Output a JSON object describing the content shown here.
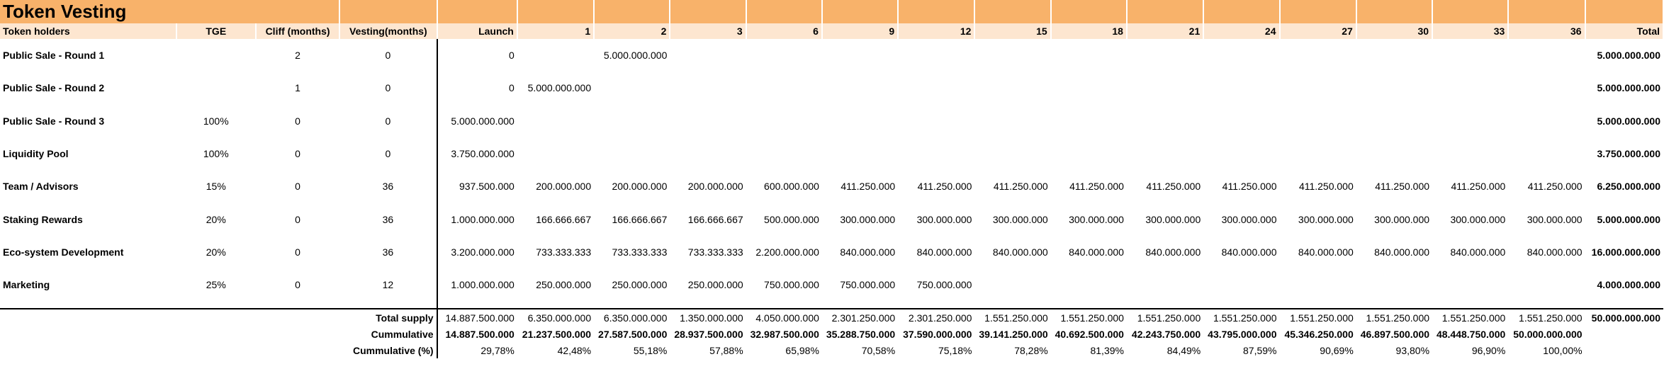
{
  "title": "Token Vesting",
  "header": {
    "holders": "Token holders",
    "tge": "TGE",
    "cliff": "Cliff (months)",
    "vesting": "Vesting(months)",
    "launch": "Launch",
    "months": [
      "1",
      "2",
      "3",
      "6",
      "9",
      "12",
      "15",
      "18",
      "21",
      "24",
      "27",
      "30",
      "33",
      "36"
    ],
    "total": "Total"
  },
  "rows": [
    {
      "name": "Public Sale - Round 1",
      "tge": "",
      "cliff": "2",
      "vesting": "0",
      "launch": "0",
      "m": [
        "",
        "5.000.000.000",
        "",
        "",
        "",
        "",
        "",
        "",
        "",
        "",
        "",
        "",
        "",
        ""
      ],
      "total": "5.000.000.000"
    },
    {
      "name": "Public Sale - Round 2",
      "tge": "",
      "cliff": "1",
      "vesting": "0",
      "launch": "0",
      "m": [
        "5.000.000.000",
        "",
        "",
        "",
        "",
        "",
        "",
        "",
        "",
        "",
        "",
        "",
        "",
        ""
      ],
      "total": "5.000.000.000"
    },
    {
      "name": "Public Sale - Round 3",
      "tge": "100%",
      "cliff": "0",
      "vesting": "0",
      "launch": "5.000.000.000",
      "m": [
        "",
        "",
        "",
        "",
        "",
        "",
        "",
        "",
        "",
        "",
        "",
        "",
        "",
        ""
      ],
      "total": "5.000.000.000"
    },
    {
      "name": "Liquidity Pool",
      "tge": "100%",
      "cliff": "0",
      "vesting": "0",
      "launch": "3.750.000.000",
      "m": [
        "",
        "",
        "",
        "",
        "",
        "",
        "",
        "",
        "",
        "",
        "",
        "",
        "",
        ""
      ],
      "total": "3.750.000.000"
    },
    {
      "name": "Team / Advisors",
      "tge": "15%",
      "cliff": "0",
      "vesting": "36",
      "launch": "937.500.000",
      "m": [
        "200.000.000",
        "200.000.000",
        "200.000.000",
        "600.000.000",
        "411.250.000",
        "411.250.000",
        "411.250.000",
        "411.250.000",
        "411.250.000",
        "411.250.000",
        "411.250.000",
        "411.250.000",
        "411.250.000",
        "411.250.000"
      ],
      "total": "6.250.000.000"
    },
    {
      "name": "Staking Rewards",
      "tge": "20%",
      "cliff": "0",
      "vesting": "36",
      "launch": "1.000.000.000",
      "m": [
        "166.666.667",
        "166.666.667",
        "166.666.667",
        "500.000.000",
        "300.000.000",
        "300.000.000",
        "300.000.000",
        "300.000.000",
        "300.000.000",
        "300.000.000",
        "300.000.000",
        "300.000.000",
        "300.000.000",
        "300.000.000"
      ],
      "total": "5.000.000.000"
    },
    {
      "name": "Eco-system Development",
      "tge": "20%",
      "cliff": "0",
      "vesting": "36",
      "launch": "3.200.000.000",
      "m": [
        "733.333.333",
        "733.333.333",
        "733.333.333",
        "2.200.000.000",
        "840.000.000",
        "840.000.000",
        "840.000.000",
        "840.000.000",
        "840.000.000",
        "840.000.000",
        "840.000.000",
        "840.000.000",
        "840.000.000",
        "840.000.000"
      ],
      "total": "16.000.000.000"
    },
    {
      "name": "Marketing",
      "tge": "25%",
      "cliff": "0",
      "vesting": "12",
      "launch": "1.000.000.000",
      "m": [
        "250.000.000",
        "250.000.000",
        "250.000.000",
        "750.000.000",
        "750.000.000",
        "750.000.000",
        "",
        "",
        "",
        "",
        "",
        "",
        "",
        ""
      ],
      "total": "4.000.000.000"
    }
  ],
  "footer": [
    {
      "label": "Total supply",
      "bold": false,
      "launch": "14.887.500.000",
      "m": [
        "6.350.000.000",
        "6.350.000.000",
        "1.350.000.000",
        "4.050.000.000",
        "2.301.250.000",
        "2.301.250.000",
        "1.551.250.000",
        "1.551.250.000",
        "1.551.250.000",
        "1.551.250.000",
        "1.551.250.000",
        "1.551.250.000",
        "1.551.250.000",
        "1.551.250.000"
      ],
      "total": "50.000.000.000"
    },
    {
      "label": "Cummulative",
      "bold": true,
      "launch": "14.887.500.000",
      "m": [
        "21.237.500.000",
        "27.587.500.000",
        "28.937.500.000",
        "32.987.500.000",
        "35.288.750.000",
        "37.590.000.000",
        "39.141.250.000",
        "40.692.500.000",
        "42.243.750.000",
        "43.795.000.000",
        "45.346.250.000",
        "46.897.500.000",
        "48.448.750.000",
        "50.000.000.000"
      ],
      "total": ""
    },
    {
      "label": "Cummulative (%)",
      "bold": false,
      "launch": "29,78%",
      "m": [
        "42,48%",
        "55,18%",
        "57,88%",
        "65,98%",
        "70,58%",
        "75,18%",
        "78,28%",
        "81,39%",
        "84,49%",
        "87,59%",
        "90,69%",
        "93,80%",
        "96,90%",
        "100,00%"
      ],
      "total": ""
    }
  ]
}
